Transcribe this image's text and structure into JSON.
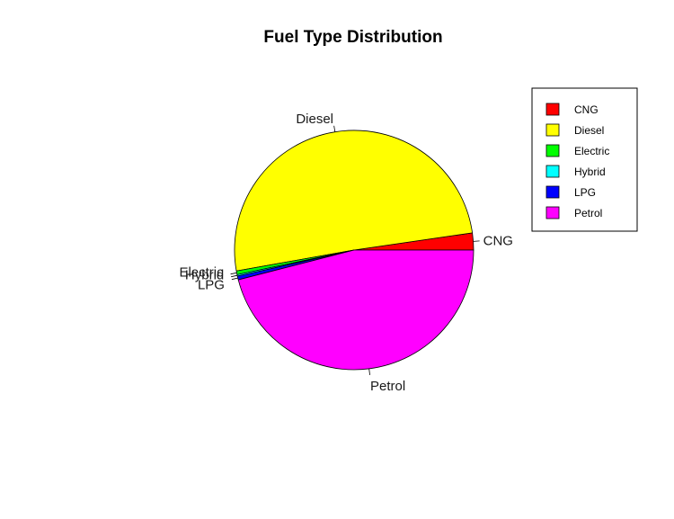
{
  "chart_data": {
    "type": "pie",
    "title": "Fuel Type Distribution",
    "categories": [
      "CNG",
      "Diesel",
      "Electric",
      "Hybrid",
      "LPG",
      "Petrol"
    ],
    "values": [
      2.3,
      50.5,
      0.5,
      0.2,
      0.5,
      46.0
    ],
    "colors": [
      "#ff0000",
      "#ffff00",
      "#00ff00",
      "#00ffff",
      "#0000ff",
      "#ff00ff"
    ],
    "legend": {
      "position": "top-right",
      "entries": [
        "CNG",
        "Diesel",
        "Electric",
        "Hybrid",
        "LPG",
        "Petrol"
      ]
    }
  }
}
